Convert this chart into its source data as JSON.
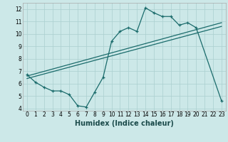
{
  "xlabel": "Humidex (Indice chaleur)",
  "bg_color": "#cce8e8",
  "grid_color": "#aacfcf",
  "line_color": "#1a6b6b",
  "xlim": [
    -0.5,
    23.5
  ],
  "ylim": [
    3.8,
    12.5
  ],
  "yticks": [
    4,
    5,
    6,
    7,
    8,
    9,
    10,
    11,
    12
  ],
  "xticks": [
    0,
    1,
    2,
    3,
    4,
    5,
    6,
    7,
    8,
    9,
    10,
    11,
    12,
    13,
    14,
    15,
    16,
    17,
    18,
    19,
    20,
    21,
    22,
    23
  ],
  "series1_x": [
    0,
    1,
    2,
    3,
    4,
    5,
    6,
    7,
    8,
    9,
    10,
    11,
    12,
    13,
    14,
    15,
    16,
    17,
    18,
    19,
    20,
    23
  ],
  "series1_y": [
    6.7,
    6.1,
    5.7,
    5.4,
    5.4,
    5.1,
    4.2,
    4.1,
    5.3,
    6.5,
    9.4,
    10.2,
    10.5,
    10.2,
    12.1,
    11.7,
    11.4,
    11.4,
    10.7,
    10.9,
    10.5,
    4.6
  ],
  "series2_x": [
    0,
    23
  ],
  "series2_y": [
    6.6,
    10.9
  ],
  "series3_x": [
    0,
    23
  ],
  "series3_y": [
    6.4,
    10.6
  ],
  "xlabel_fontsize": 7,
  "tick_fontsize": 5.5
}
